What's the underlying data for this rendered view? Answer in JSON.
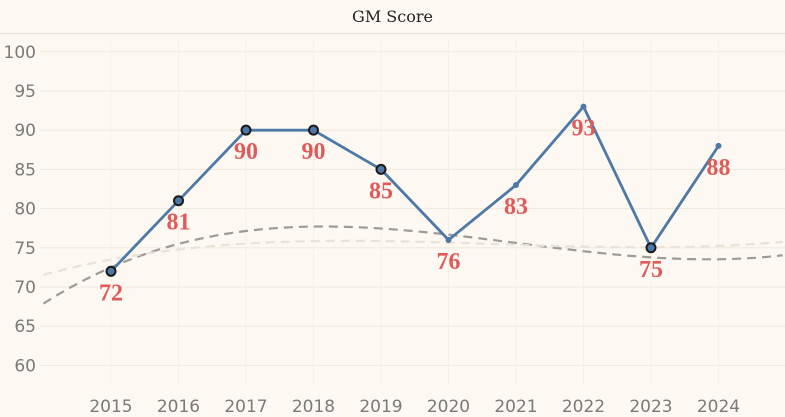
{
  "chart_data": {
    "type": "line",
    "title": "GM Score",
    "xlabel": "",
    "ylabel": "",
    "categories": [
      "2015",
      "2016",
      "2017",
      "2018",
      "2019",
      "2020",
      "2021",
      "2022",
      "2023",
      "2024"
    ],
    "x": [
      2015,
      2016,
      2017,
      2018,
      2019,
      2020,
      2021,
      2022,
      2023,
      2024
    ],
    "y_ticks": [
      60,
      65,
      70,
      75,
      80,
      85,
      90,
      95,
      100
    ],
    "ylim": [
      57.5,
      101.5
    ],
    "grid": true,
    "series": [
      {
        "values": [
          72,
          81,
          90,
          90,
          85,
          76,
          83,
          93,
          75,
          88
        ],
        "color": "#4e79a7",
        "marked_points": [
          0,
          1,
          2,
          3,
          4,
          8
        ]
      }
    ],
    "data_labels": [
      "72",
      "81",
      "90",
      "90",
      "85",
      "76",
      "83",
      "93",
      "75",
      "88"
    ],
    "trend_lines": [
      {
        "style": "dashed",
        "color": "#9e9a94",
        "kind": "polynomial",
        "coeffs": [
          72.5,
          3.76,
          -0.81,
          0.045
        ]
      },
      {
        "style": "dashed",
        "color": "#e8e2d9",
        "kind": "polynomial",
        "coeffs": [
          73.5,
          1.6,
          -0.33,
          0.0193
        ]
      }
    ],
    "colors": {
      "label": "#e05a5a",
      "line": "#4e79a7",
      "marker_outline": "#1a1a1a",
      "background": "#fdf8f1"
    }
  }
}
